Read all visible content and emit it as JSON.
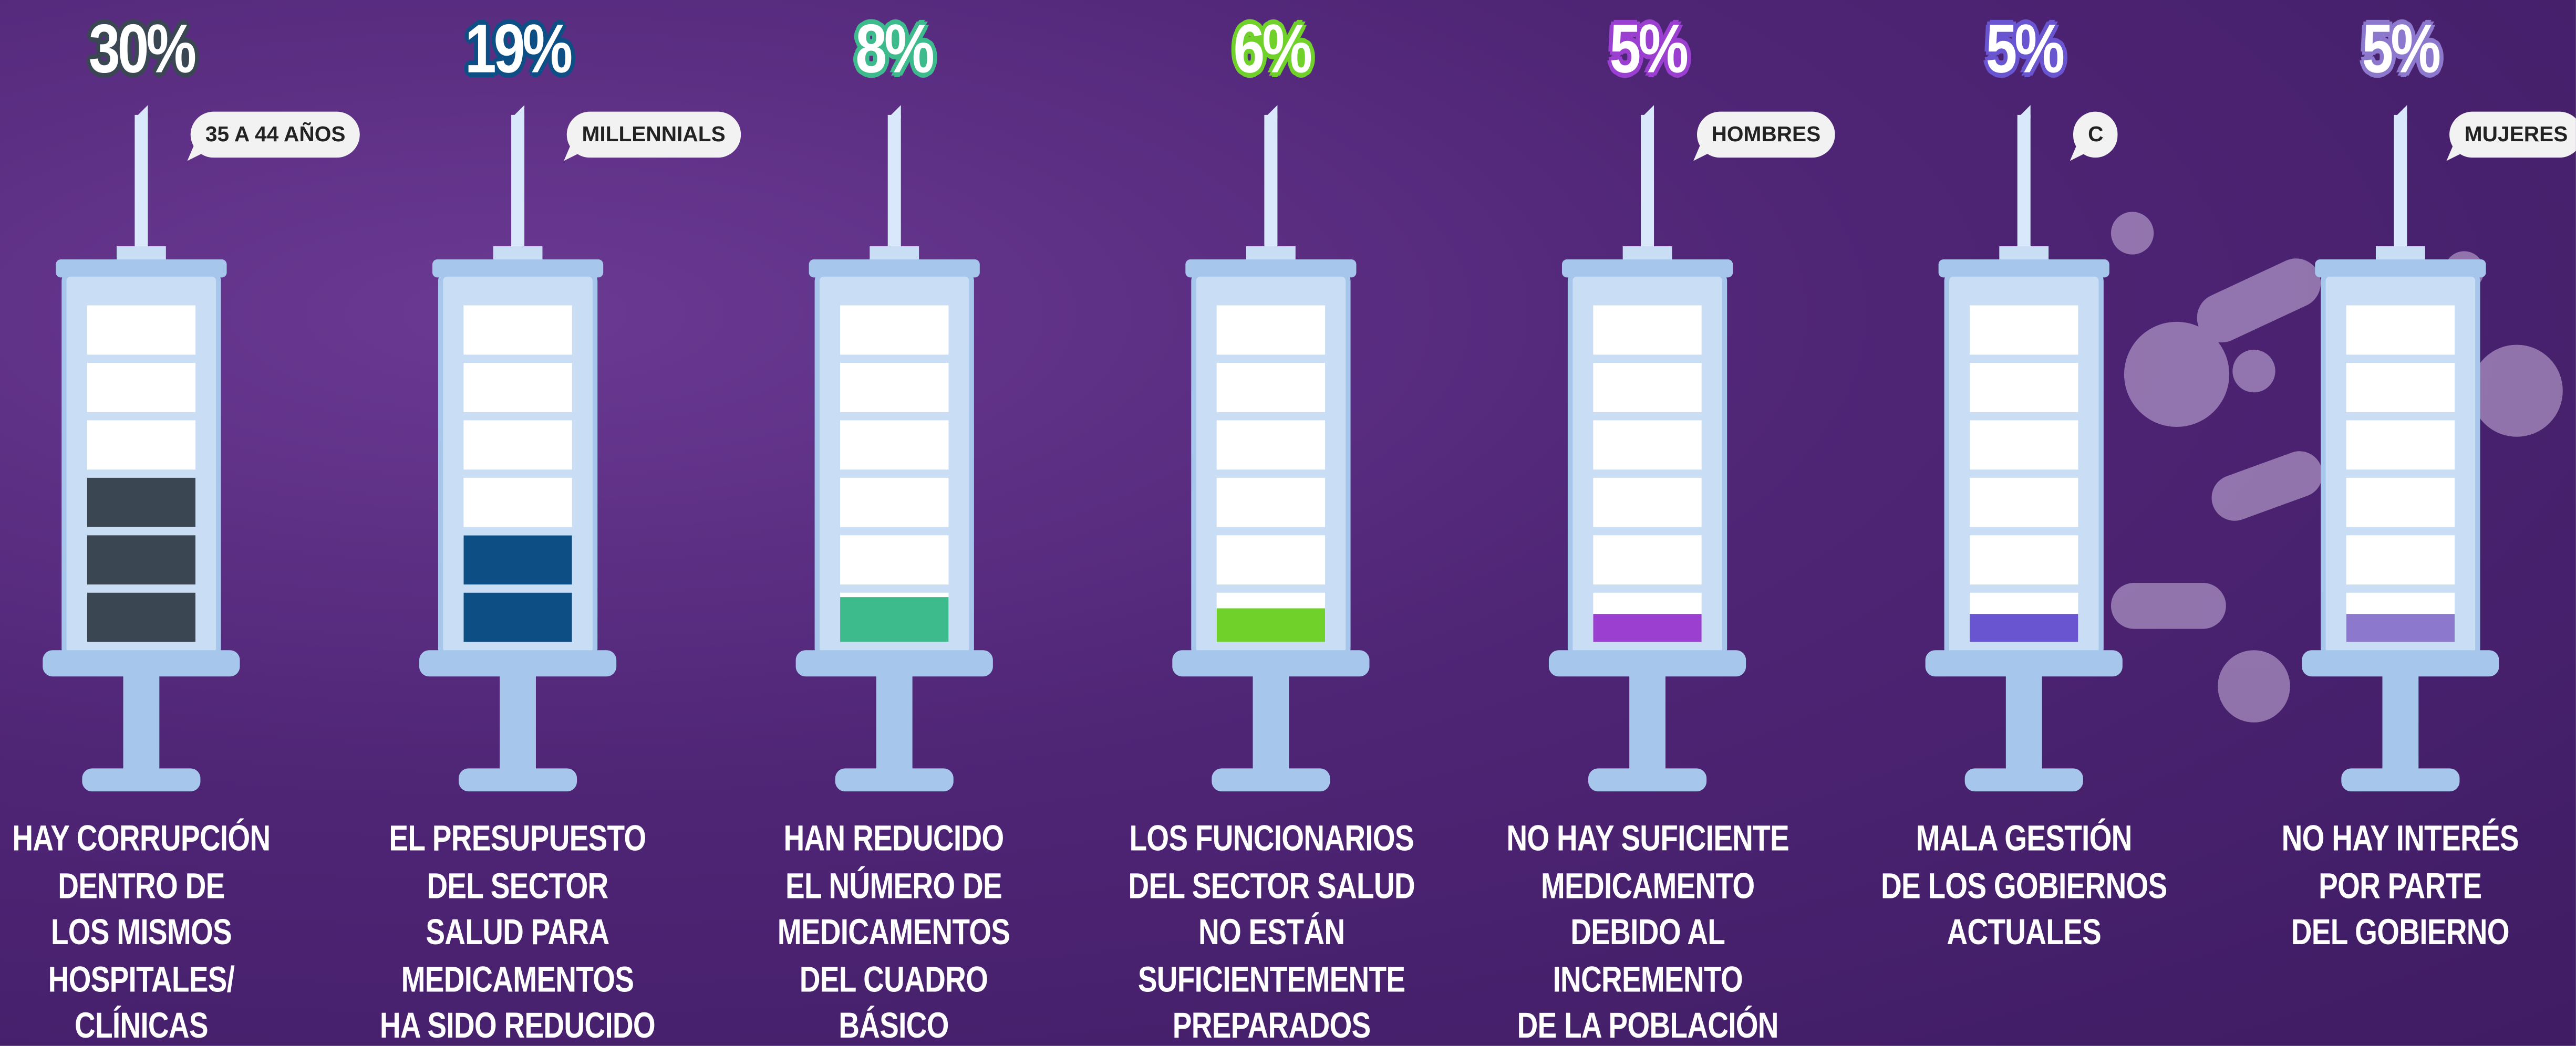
{
  "chart_data": {
    "type": "bar",
    "categories": [
      "HAY CORRUPCIÓN\nDENTRO DE\nLOS MISMOS\nHOSPITALES/\nCLÍNICAS",
      "EL PRESUPUESTO\nDEL SECTOR\nSALUD PARA\nMEDICAMENTOS\nHA SIDO REDUCIDO",
      "HAN REDUCIDO\nEL NÚMERO DE\nMEDICAMENTOS\nDEL CUADRO BÁSICO",
      "LOS FUNCIONARIOS\nDEL SECTOR SALUD\nNO ESTÁN\nSUFICIENTEMENTE\nPREPARADOS",
      "NO HAY SUFICIENTE\nMEDICAMENTO\nDEBIDO AL\nINCREMENTO\nDE LA POBLACIÓN",
      "MALA GESTIÓN\nDE LOS GOBIERNOS\nACTUALES",
      "NO HAY INTERÉS\nPOR PARTE\nDEL GOBIERNO"
    ],
    "values": [
      30,
      19,
      8,
      6,
      5,
      5,
      5
    ],
    "value_labels": [
      "30%",
      "19%",
      "8%",
      "6%",
      "5%",
      "5%",
      "5%"
    ],
    "tags": [
      "35 A 44 AÑOS",
      "MILLENNIALS",
      null,
      null,
      "HOMBRES",
      "C",
      "MUJERES"
    ],
    "colors": [
      "#3a4753",
      "#0d4f85",
      "#3dbb8c",
      "#6fd12a",
      "#9b3fd0",
      "#6a55d0",
      "#8c78cc"
    ],
    "ylim": [
      0,
      60
    ]
  }
}
